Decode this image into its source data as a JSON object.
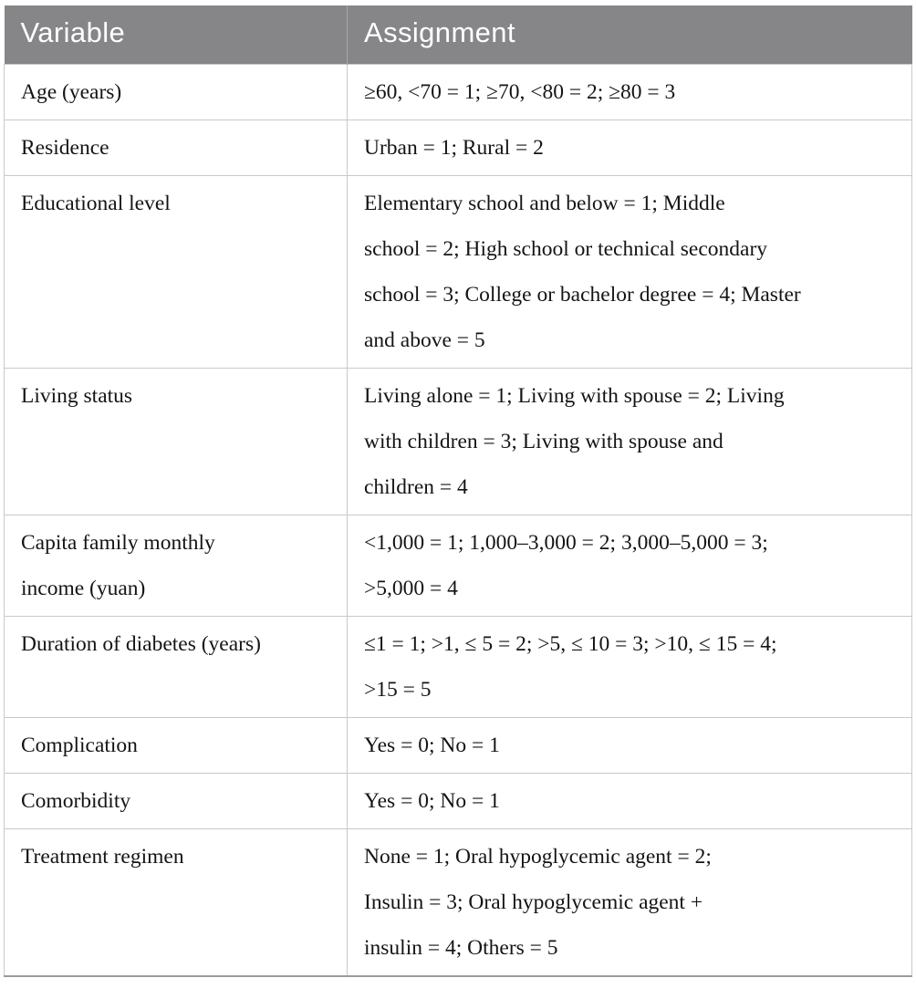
{
  "colors": {
    "header_background": "#868689",
    "header_text": "#ffffff",
    "grid_border": "#c9c9c9",
    "bottom_rule": "#9b9b9b",
    "body_text": "#141414",
    "page_background": "#ffffff"
  },
  "table": {
    "header": {
      "variable": "Variable",
      "assignment": "Assignment"
    },
    "rows": [
      {
        "variable": "Age (years)",
        "assignment": "≥60, <70 = 1; ≥70, <80 = 2; ≥80 = 3"
      },
      {
        "variable": "Residence",
        "assignment": "Urban = 1; Rural = 2"
      },
      {
        "variable": "Educational level",
        "assignment": [
          "Elementary school and below = 1; Middle",
          "school = 2; High school or technical secondary",
          "school = 3; College or bachelor degree = 4; Master",
          "and above = 5"
        ]
      },
      {
        "variable": "Living status",
        "assignment": [
          "Living alone = 1; Living with spouse = 2; Living",
          "with children = 3; Living with spouse and",
          "children = 4"
        ]
      },
      {
        "variable": [
          "Capita family monthly",
          "income (yuan)"
        ],
        "assignment": [
          "<1,000 = 1; 1,000–3,000 = 2; 3,000–5,000 = 3;",
          ">5,000 = 4"
        ]
      },
      {
        "variable": "Duration of diabetes (years)",
        "assignment": [
          "≤1 = 1; >1, ≤ 5 = 2; >5, ≤ 10 = 3; >10, ≤ 15 = 4;",
          ">15 = 5"
        ]
      },
      {
        "variable": "Complication",
        "assignment": "Yes = 0; No = 1"
      },
      {
        "variable": "Comorbidity",
        "assignment": "Yes = 0; No = 1"
      },
      {
        "variable": "Treatment regimen",
        "assignment": [
          "None = 1; Oral hypoglycemic agent = 2;",
          "Insulin = 3; Oral hypoglycemic agent +",
          "insulin = 4; Others = 5"
        ]
      }
    ]
  }
}
